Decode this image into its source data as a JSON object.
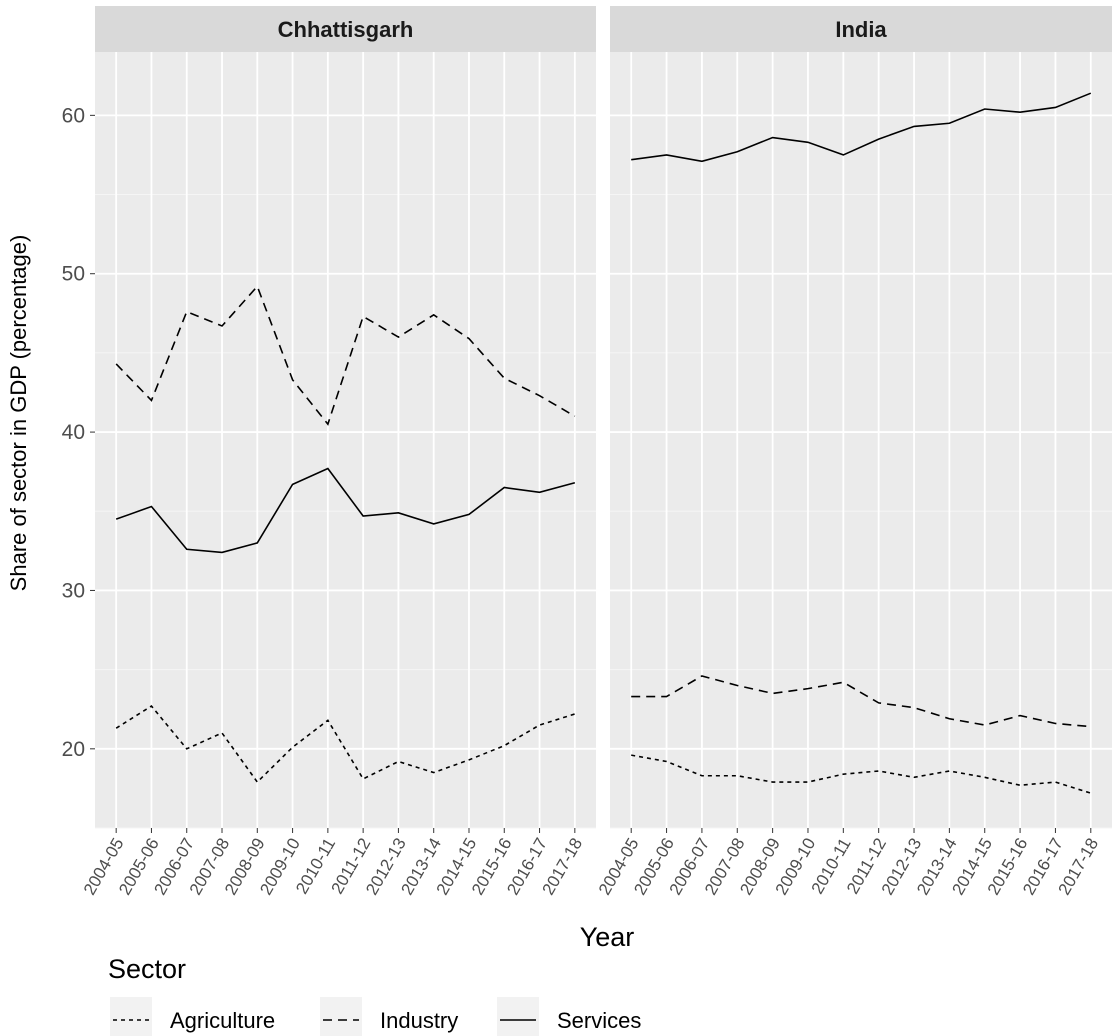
{
  "chart_data": {
    "type": "line",
    "ylabel": "Share of sector in GDP (percentage)",
    "xlabel": "Year",
    "ylim": [
      15,
      64
    ],
    "yticks": [
      20,
      30,
      40,
      50,
      60
    ],
    "categories": [
      "2004-05",
      "2005-06",
      "2006-07",
      "2007-08",
      "2008-09",
      "2009-10",
      "2010-11",
      "2011-12",
      "2012-13",
      "2013-14",
      "2014-15",
      "2015-16",
      "2016-17",
      "2017-18"
    ],
    "legend": {
      "title": "Sector",
      "position": "bottom-left",
      "items": [
        {
          "label": "Agriculture",
          "linetype": "dotted"
        },
        {
          "label": "Industry",
          "linetype": "dashed"
        },
        {
          "label": "Services",
          "linetype": "solid"
        }
      ]
    },
    "grid": true,
    "panel_background": "#ebebeb",
    "strip_background": "#d9d9d9",
    "line_color": "#000000",
    "panels": [
      {
        "title": "Chhattisgarh",
        "series": [
          {
            "name": "Agriculture",
            "values": [
              21.3,
              22.7,
              20.0,
              21.0,
              17.9,
              20.1,
              21.8,
              18.1,
              19.2,
              18.5,
              19.3,
              20.2,
              21.5,
              22.2
            ]
          },
          {
            "name": "Industry",
            "values": [
              44.3,
              42.0,
              47.6,
              46.7,
              49.2,
              43.3,
              40.5,
              47.3,
              46.0,
              47.4,
              45.9,
              43.4,
              42.3,
              41.0
            ]
          },
          {
            "name": "Services",
            "values": [
              34.5,
              35.3,
              32.6,
              32.4,
              33.0,
              36.7,
              37.7,
              34.7,
              34.9,
              34.2,
              34.8,
              36.5,
              36.2,
              36.8
            ]
          }
        ]
      },
      {
        "title": "India",
        "series": [
          {
            "name": "Agriculture",
            "values": [
              19.6,
              19.2,
              18.3,
              18.3,
              17.9,
              17.9,
              18.4,
              18.6,
              18.2,
              18.6,
              18.2,
              17.7,
              17.9,
              17.2
            ]
          },
          {
            "name": "Industry",
            "values": [
              23.3,
              23.3,
              24.6,
              24.0,
              23.5,
              23.8,
              24.2,
              22.9,
              22.6,
              21.9,
              21.5,
              22.1,
              21.6,
              21.4
            ]
          },
          {
            "name": "Services",
            "values": [
              57.2,
              57.5,
              57.1,
              57.7,
              58.6,
              58.3,
              57.5,
              58.5,
              59.3,
              59.5,
              60.4,
              60.2,
              60.5,
              61.4
            ]
          }
        ]
      }
    ]
  }
}
